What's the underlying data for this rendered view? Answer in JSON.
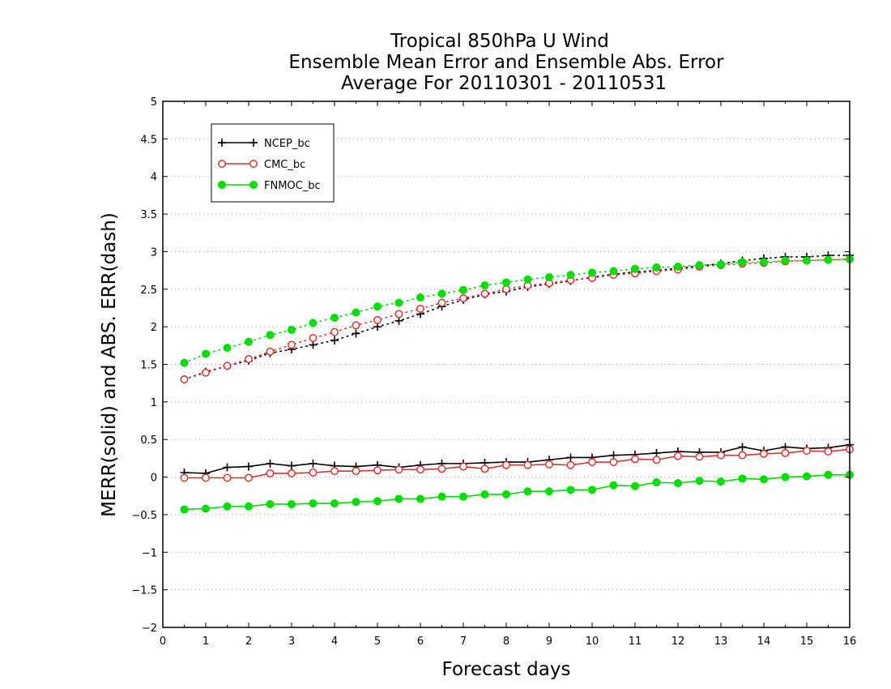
{
  "chart_data": {
    "type": "line",
    "title": [
      "Tropical 850hPa U Wind",
      "Ensemble Mean Error and Ensemble Abs. Error",
      "Average For 20110301 - 20110531"
    ],
    "xlabel": "Forecast days",
    "ylabel": "MERR(solid) and ABS. ERR(dash)",
    "xlim": [
      0,
      16
    ],
    "ylim": [
      -2,
      5
    ],
    "xticks": [
      0,
      1,
      2,
      3,
      4,
      5,
      6,
      7,
      8,
      9,
      10,
      11,
      12,
      13,
      14,
      15,
      16
    ],
    "xtick_labels": [
      "0",
      "1",
      "2",
      "3",
      "4",
      "5",
      "6",
      "7",
      "8",
      "9",
      "10",
      "11",
      "12",
      "13",
      "14",
      "15",
      "16"
    ],
    "yticks": [
      -2,
      -1.5,
      -1,
      -0.5,
      0,
      0.5,
      1,
      1.5,
      2,
      2.5,
      3,
      3.5,
      4,
      4.5,
      5
    ],
    "ytick_labels": [
      "−2",
      "−1.5",
      "−1",
      "−0.5",
      "0",
      "0.5",
      "1",
      "1.5",
      "2",
      "2.5",
      "3",
      "3.5",
      "4",
      "4.5",
      "5"
    ],
    "grid": "horizontal dotted",
    "legend_position": "top-left",
    "x": [
      0.5,
      1,
      1.5,
      2,
      2.5,
      3,
      3.5,
      4,
      4.5,
      5,
      5.5,
      6,
      6.5,
      7,
      7.5,
      8,
      8.5,
      9,
      9.5,
      10,
      10.5,
      11,
      11.5,
      12,
      12.5,
      13,
      13.5,
      14,
      14.5,
      15,
      15.5,
      16
    ],
    "series": [
      {
        "name": "NCEP_bc",
        "color": "#000000",
        "marker": "plus",
        "merr": [
          0.06,
          0.05,
          0.13,
          0.14,
          0.18,
          0.15,
          0.18,
          0.15,
          0.14,
          0.16,
          0.13,
          0.16,
          0.18,
          0.18,
          0.19,
          0.2,
          0.2,
          0.23,
          0.26,
          0.26,
          0.29,
          0.3,
          0.32,
          0.34,
          0.33,
          0.33,
          0.4,
          0.35,
          0.4,
          0.38,
          0.39,
          0.43
        ],
        "abs_err": [
          1.3,
          1.4,
          1.48,
          1.55,
          1.65,
          1.7,
          1.76,
          1.82,
          1.91,
          2.0,
          2.08,
          2.17,
          2.27,
          2.36,
          2.43,
          2.47,
          2.53,
          2.57,
          2.61,
          2.66,
          2.7,
          2.73,
          2.75,
          2.78,
          2.81,
          2.84,
          2.88,
          2.91,
          2.93,
          2.93,
          2.95,
          2.95
        ]
      },
      {
        "name": "CMC_bc",
        "color": "#e03030",
        "marker": "open-circle",
        "merr": [
          -0.01,
          -0.01,
          -0.01,
          -0.01,
          0.05,
          0.05,
          0.06,
          0.08,
          0.08,
          0.09,
          0.1,
          0.1,
          0.11,
          0.14,
          0.11,
          0.16,
          0.16,
          0.17,
          0.16,
          0.2,
          0.2,
          0.24,
          0.23,
          0.28,
          0.27,
          0.29,
          0.29,
          0.31,
          0.32,
          0.35,
          0.34,
          0.37
        ],
        "abs_err": [
          1.3,
          1.39,
          1.48,
          1.57,
          1.67,
          1.76,
          1.85,
          1.93,
          2.02,
          2.09,
          2.17,
          2.24,
          2.32,
          2.38,
          2.44,
          2.5,
          2.55,
          2.58,
          2.62,
          2.65,
          2.69,
          2.71,
          2.74,
          2.76,
          2.8,
          2.82,
          2.84,
          2.85,
          2.87,
          2.88,
          2.89,
          2.9
        ]
      },
      {
        "name": "FNMOC_bc",
        "color": "#00dd00",
        "marker": "filled-circle",
        "merr": [
          -0.43,
          -0.42,
          -0.39,
          -0.39,
          -0.36,
          -0.36,
          -0.35,
          -0.35,
          -0.33,
          -0.32,
          -0.29,
          -0.29,
          -0.26,
          -0.26,
          -0.23,
          -0.23,
          -0.19,
          -0.19,
          -0.17,
          -0.17,
          -0.11,
          -0.12,
          -0.07,
          -0.08,
          -0.05,
          -0.06,
          -0.02,
          -0.03,
          0.0,
          0.01,
          0.03,
          0.03
        ],
        "abs_err": [
          1.52,
          1.64,
          1.72,
          1.8,
          1.89,
          1.96,
          2.05,
          2.12,
          2.19,
          2.27,
          2.32,
          2.39,
          2.44,
          2.49,
          2.55,
          2.59,
          2.63,
          2.66,
          2.69,
          2.72,
          2.74,
          2.77,
          2.79,
          2.8,
          2.82,
          2.83,
          2.86,
          2.86,
          2.88,
          2.88,
          2.89,
          2.9
        ]
      }
    ]
  }
}
